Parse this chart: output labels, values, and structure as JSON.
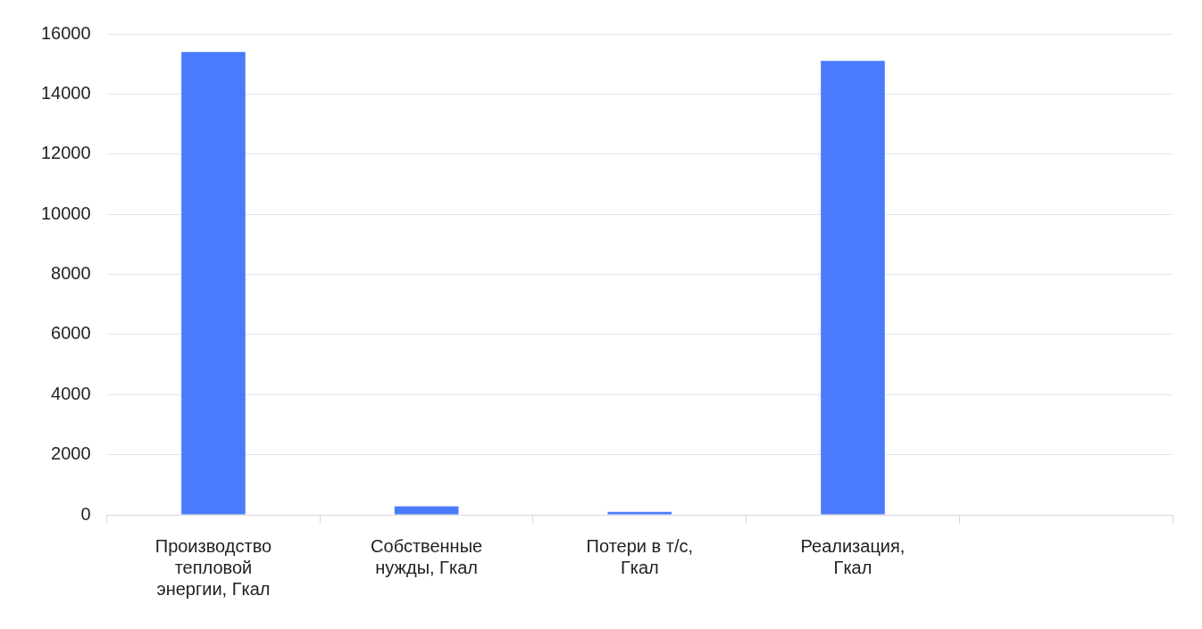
{
  "chart_data": {
    "type": "bar",
    "categories": [
      "Производство тепловой энергии, Гкал",
      "Собственные нужды, Гкал",
      "Потери в т/с, Гкал",
      "Реализация, Гкал",
      null
    ],
    "values": [
      15400,
      280,
      100,
      15100,
      null
    ],
    "color": "#4a7bfd",
    "ylim": [
      0,
      16000
    ],
    "yticks": [
      0,
      2000,
      4000,
      6000,
      8000,
      10000,
      12000,
      14000,
      16000
    ],
    "grid": "y",
    "legend": false
  }
}
